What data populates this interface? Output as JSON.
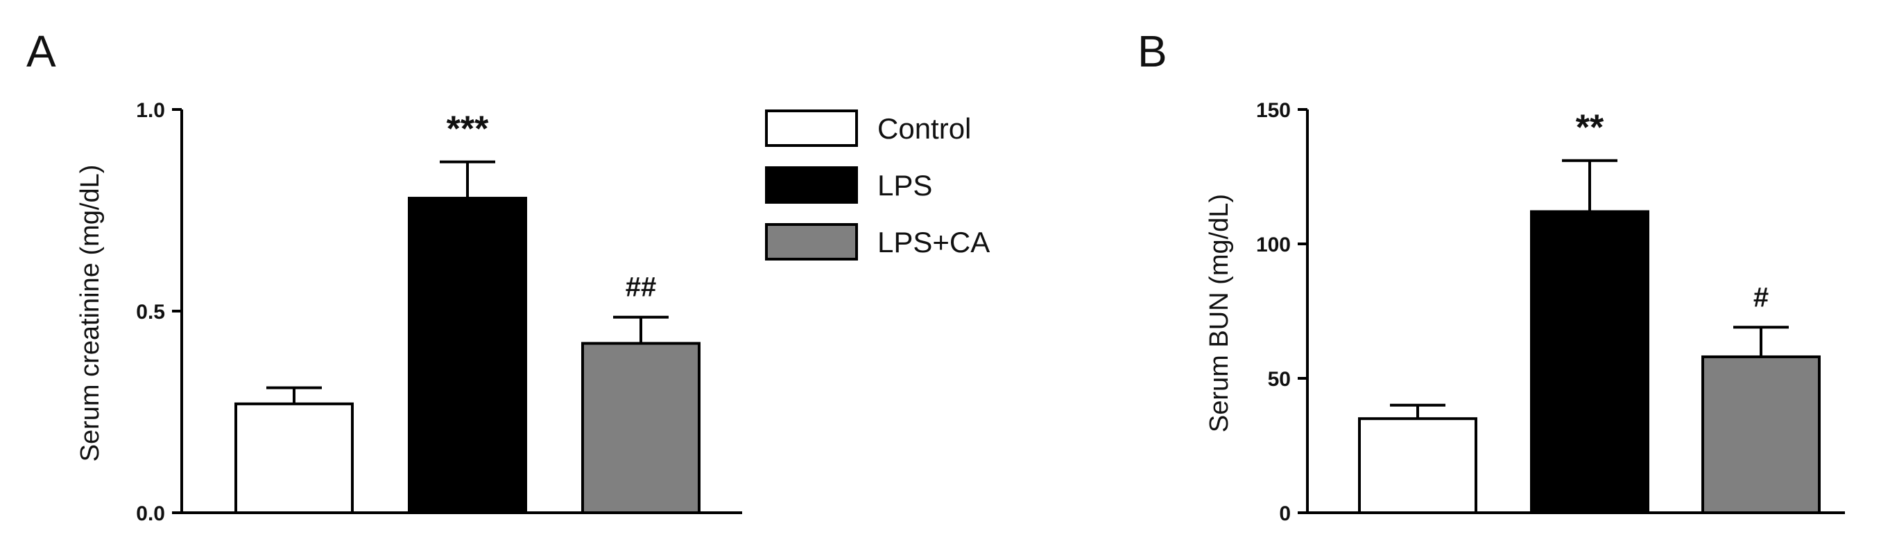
{
  "legend": [
    {
      "label": "Control",
      "color": "#ffffff"
    },
    {
      "label": "LPS",
      "color": "#000000"
    },
    {
      "label": "LPS+CA",
      "color": "#808080"
    }
  ],
  "chart_data": [
    {
      "panel": "A",
      "type": "bar",
      "ylabel": "Serum creatinine (mg/dL)",
      "ylim": [
        0,
        1.0
      ],
      "yticks": [
        "0.0",
        "0.5",
        "1.0"
      ],
      "categories": [
        "Control",
        "LPS",
        "LPS+CA"
      ],
      "values": [
        0.27,
        0.78,
        0.42
      ],
      "errors": [
        0.04,
        0.09,
        0.065
      ],
      "significance": [
        "",
        "***",
        "##"
      ]
    },
    {
      "panel": "B",
      "type": "bar",
      "ylabel": "Serum BUN (mg/dL)",
      "ylim": [
        0,
        150
      ],
      "yticks": [
        "0",
        "50",
        "100",
        "150"
      ],
      "categories": [
        "Control",
        "LPS",
        "LPS+CA"
      ],
      "values": [
        35,
        112,
        58
      ],
      "errors": [
        5,
        19,
        11
      ],
      "significance": [
        "",
        "**",
        "#"
      ]
    }
  ]
}
